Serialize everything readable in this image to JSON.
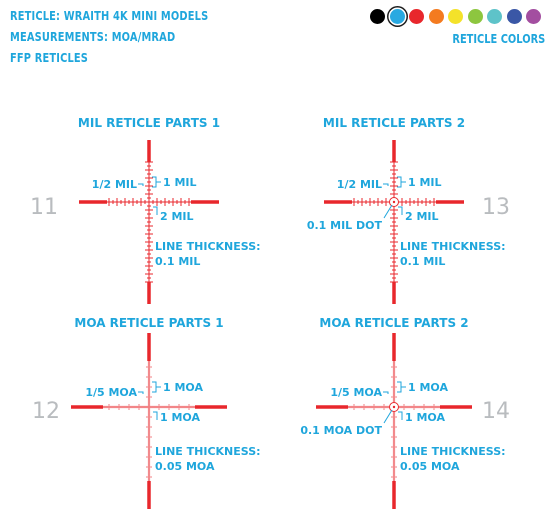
{
  "header": {
    "line1": "RETICLE: WRAITH  4K MINI MODELS",
    "line2": "MEASUREMENTS: MOA/MRAD",
    "line3": "FFP RETICLES"
  },
  "reticle_colors": {
    "label": "RETICLE COLORS",
    "swatches": [
      "#000000",
      "#29a9e1",
      "#e8272c",
      "#f47b20",
      "#f4e22a",
      "#8dc63f",
      "#5ec3c9",
      "#3a57a6",
      "#a34ea0"
    ]
  },
  "colors": {
    "reticle": "#e8272c",
    "text": "#1fa6dc",
    "number": "#b9bcbf"
  },
  "panels": [
    {
      "number": "11",
      "title": "MIL RETICLE PARTS 1",
      "small_label": "1/2 MIL",
      "top_label": "1 MIL",
      "bottom_label": "2 MIL",
      "dot_label": "",
      "thickness_label": "LINE THICKNESS:",
      "thickness_value": "0.1 MIL"
    },
    {
      "number": "13",
      "title": "MIL RETICLE PARTS 2",
      "small_label": "1/2 MIL",
      "top_label": "1 MIL",
      "bottom_label": "2 MIL",
      "dot_label": "0.1 MIL DOT",
      "thickness_label": "LINE THICKNESS:",
      "thickness_value": "0.1 MIL"
    },
    {
      "number": "12",
      "title": "MOA RETICLE PARTS 1",
      "small_label": "1/5 MOA",
      "top_label": "1 MOA",
      "bottom_label": "1 MOA",
      "dot_label": "",
      "thickness_label": "LINE THICKNESS:",
      "thickness_value": "0.05 MOA"
    },
    {
      "number": "14",
      "title": "MOA RETICLE PARTS 2",
      "small_label": "1/5 MOA",
      "top_label": "1 MOA",
      "bottom_label": "1 MOA",
      "dot_label": "0.1 MOA DOT",
      "thickness_label": "LINE THICKNESS:",
      "thickness_value": "0.05 MOA"
    }
  ]
}
